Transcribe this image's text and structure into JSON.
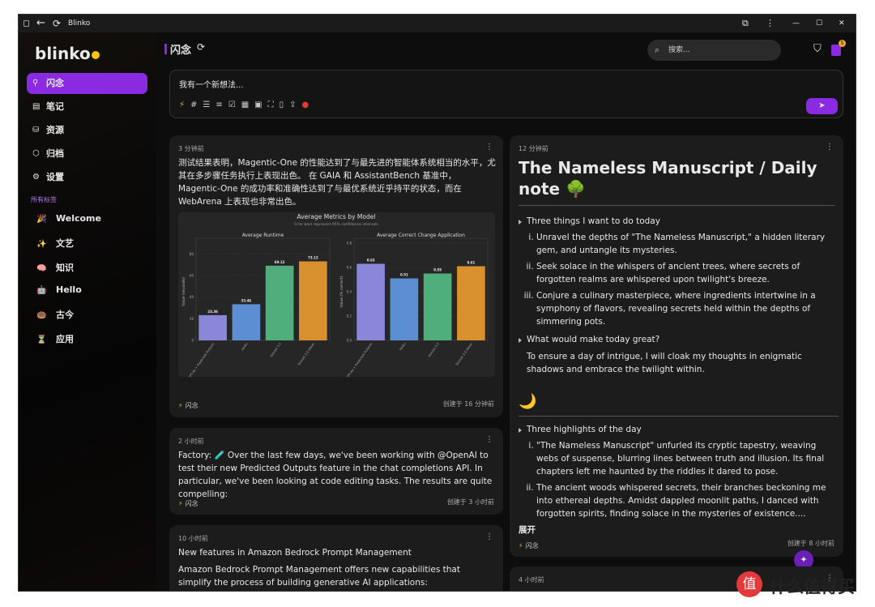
{
  "window": {
    "title": "Blinko"
  },
  "sidebar": {
    "logo": "blinko",
    "nav": [
      "闪念",
      "笔记",
      "资源",
      "归档",
      "设置"
    ],
    "tags_heading": "所有标签",
    "tags": [
      {
        "icon": "🎉",
        "label": "Welcome"
      },
      {
        "icon": "✨",
        "label": "文艺"
      },
      {
        "icon": "🧠",
        "label": "知识"
      },
      {
        "icon": "🤖",
        "label": "Hello"
      },
      {
        "icon": "🍩",
        "label": "古今"
      },
      {
        "icon": "⏳",
        "label": "应用"
      }
    ]
  },
  "header": {
    "title": "闪念",
    "search_placeholder": "搜索...",
    "badge": "5"
  },
  "editor": {
    "placeholder": "我有一个新想法..."
  },
  "cards": [
    {
      "time": "3 分钟前",
      "text": "测试结果表明，Magentic-One 的性能达到了与最先进的智能体系统相当的水平，尤其在多步骤任务执行上表现出色。 在 GAIA 和 AssistantBench 基准中，Magentic-One 的成功率和准确性达到了与最优系统近乎持平的状态，而在 WebArena 上表现也非常出色。",
      "tag": "闪念",
      "footer": "创建于 16 分钟前",
      "image_chart": {
        "title": "Average Metrics by Model",
        "subtitle": "Error bars represent 95% confidence intervals",
        "categories": [
          "GPT-4o + Predicted Outputs",
          "Haiku",
          "Sonnet 3.5",
          "Sonnet 3.5 (New)"
        ],
        "colors": [
          "#8a86d8",
          "#5b8fd1",
          "#4fae7c",
          "#d8912e"
        ],
        "panels": [
          {
            "title": "Average Runtime",
            "ylabel": "Value (seconds)",
            "ylim": [
              0,
              90
            ],
            "yticks": [
              0,
              20,
              40,
              60,
              80
            ],
            "values": [
              23.36,
              33.46,
              69.12,
              73.13
            ]
          },
          {
            "title": "Average Correct Change Application",
            "ylabel": "Value (% correct)",
            "ylim": [
              0,
              0.8
            ],
            "yticks": [
              {
                "value": 0,
                "label": "0.0"
              },
              0.2,
              0.4,
              0.6,
              0.8
            ],
            "values": [
              0.63,
              0.51,
              0.55,
              0.61
            ]
          }
        ]
      }
    },
    {
      "time": "2 小时前",
      "text": "Factory: 🧪 Over the last few days, we've been working with @OpenAI to test their new Predicted Outputs feature in the chat completions API. In particular, we've been looking at code editing tasks. The results are quite compelling:",
      "tag": "闪念",
      "footer": "创建于 3 小时前"
    },
    {
      "time": "10 小时前",
      "title": "New features in Amazon Bedrock Prompt Management",
      "text": "Amazon Bedrock Prompt Management offers new capabilities that simplify the process of building generative AI applications:"
    },
    {
      "time": "12 分钟前",
      "heading": "The Nameless Manuscript / Daily note",
      "heading_emoji": "🌳",
      "list1": [
        {
          "title": "Three things I want to do today",
          "items": [
            "Unravel the depths of \"The Nameless Manuscript,\" a hidden literary gem, and untangle its mysteries.",
            "Seek solace in the whispers of ancient trees, where secrets of forgotten realms are whispered upon twilight's breeze.",
            "Conjure a culinary masterpiece, where ingredients intertwine in a symphony of flavors, revealing secrets held within the depths of simmering pots."
          ]
        },
        {
          "title": "What would make today great?"
        }
      ],
      "paragraph": "To ensure a day of intrigue, I will cloak my thoughts in enigmatic shadows and embrace the twilight within.",
      "emoji2": "🌙",
      "list2": [
        {
          "title": "Three highlights of the day",
          "items": [
            "\"The Nameless Manuscript\" unfurled its cryptic tapestry, weaving webs of suspense, blurring lines between truth and illusion. Its final chapters left me haunted by the riddles it dared to pose.",
            "The ancient woods whispered secrets, their branches beckoning me into ethereal depths. Amidst dappled moonlit paths, I danced with forgotten spirits, finding solace in the mysteries of existence...."
          ]
        }
      ],
      "expand": "展开",
      "tag": "闪念",
      "footer": "创建于 8 小时前"
    },
    {
      "time": "4 小时前"
    }
  ],
  "watermark": "什么值得买"
}
